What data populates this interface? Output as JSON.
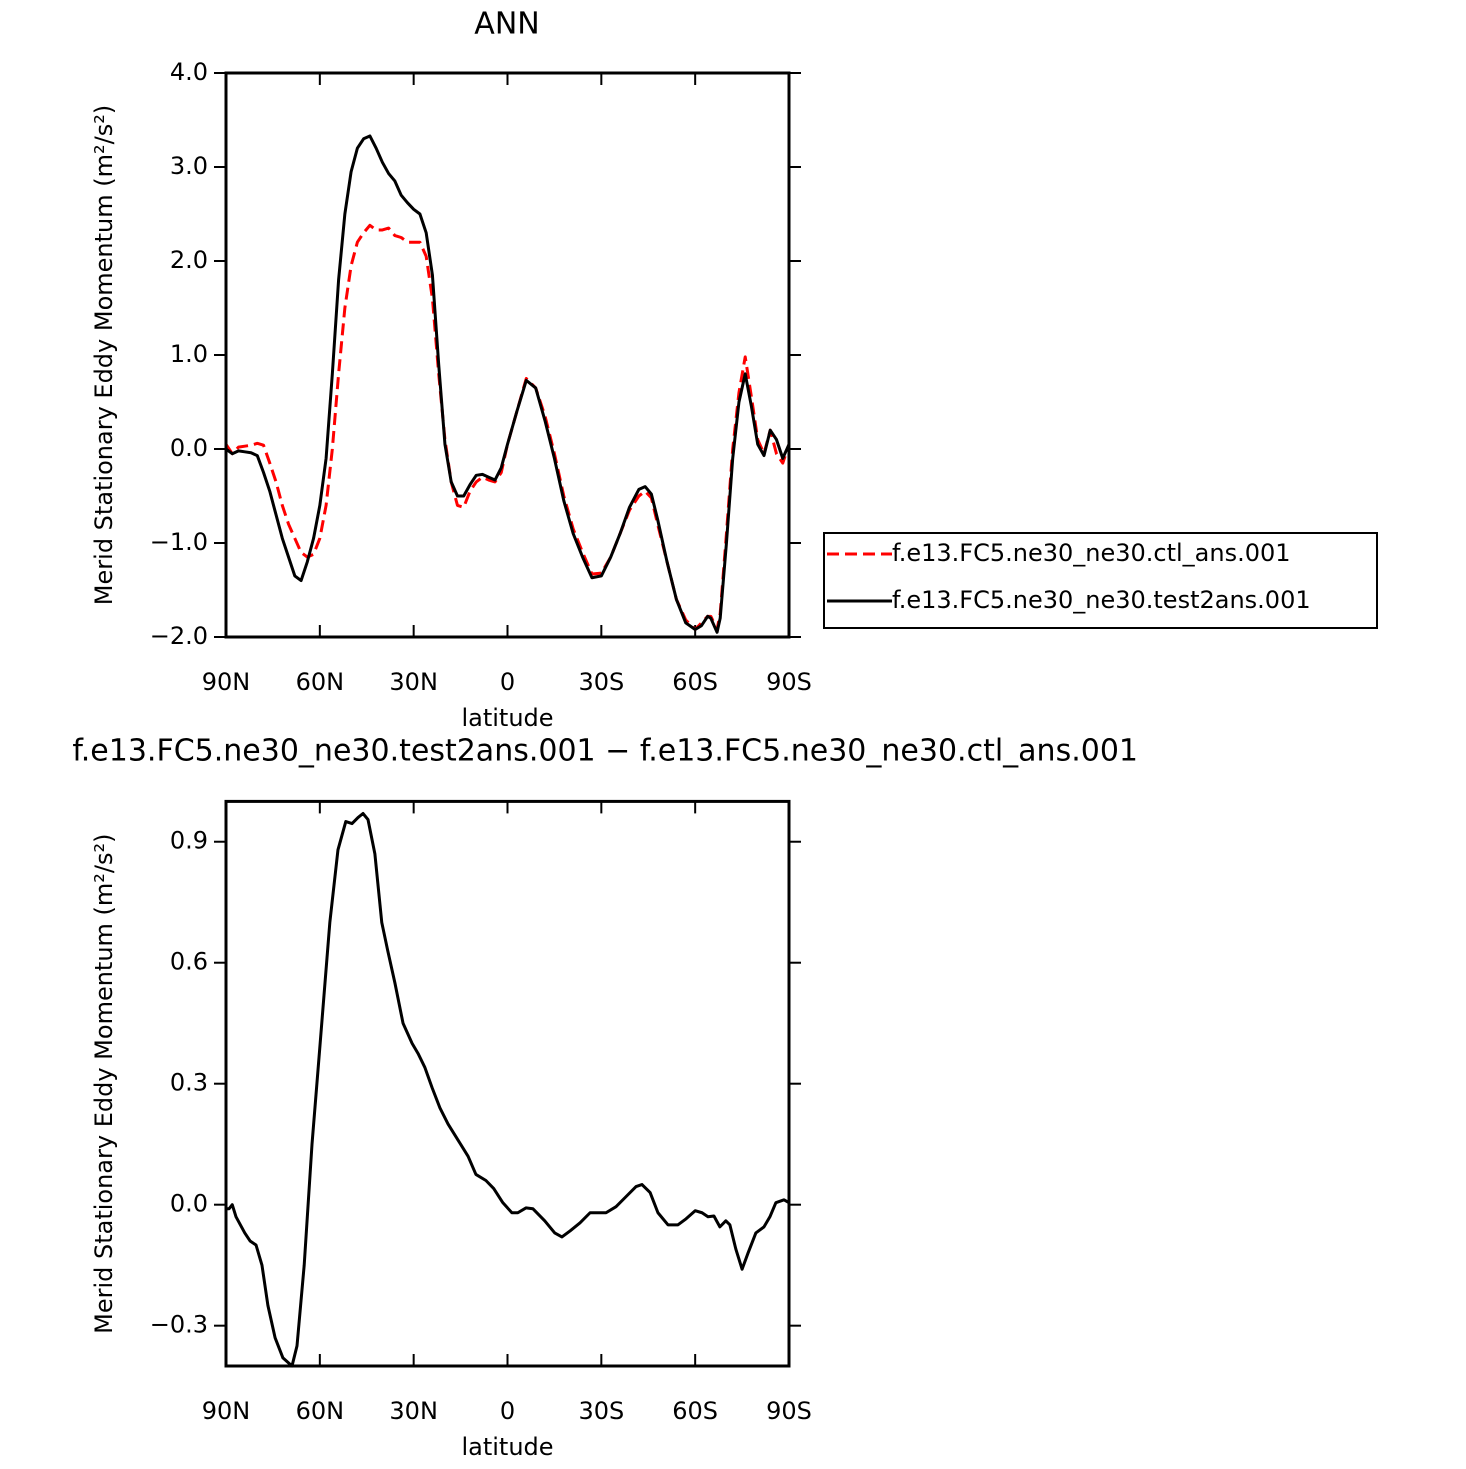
{
  "chart_data": [
    {
      "type": "line",
      "title": "ANN",
      "x_label": "latitude",
      "y_label": "Merid Stationary Eddy Momentum (m²/s²)",
      "xlim": [
        90,
        -90
      ],
      "xticks": [
        {
          "value": 90,
          "label": "90N"
        },
        {
          "value": 60,
          "label": "60N"
        },
        {
          "value": 30,
          "label": "30N"
        },
        0,
        {
          "value": -30,
          "label": "30S"
        },
        {
          "value": -60,
          "label": "60S"
        },
        {
          "value": -90,
          "label": "90S"
        }
      ],
      "ylim": [
        -2.0,
        4.0
      ],
      "yticks": [
        {
          "value": 4,
          "label": "4.0"
        },
        {
          "value": 3,
          "label": "3.0"
        },
        {
          "value": 2,
          "label": "2.0"
        },
        {
          "value": 1,
          "label": "1.0"
        },
        {
          "value": 0,
          "label": "0.0"
        },
        {
          "value": -1,
          "label": "−1.0"
        },
        {
          "value": -2,
          "label": "−2.0"
        }
      ],
      "legend": "right",
      "x": [
        90,
        88,
        86,
        84,
        82,
        80,
        78,
        76,
        74,
        72,
        70,
        68,
        66,
        64,
        62,
        60,
        58,
        56,
        54,
        52,
        50,
        48,
        46,
        44,
        42,
        40,
        38,
        36,
        34,
        32,
        30,
        28,
        26,
        24,
        22,
        20,
        18,
        16,
        14,
        12,
        10,
        8,
        6,
        4,
        2,
        0,
        -3,
        -6,
        -9,
        -12,
        -15,
        -18,
        -21,
        -24,
        -27,
        -30,
        -33,
        -36,
        -39,
        -42,
        -44,
        -46,
        -48,
        -51,
        -54,
        -57,
        -60,
        -62,
        -64,
        -65,
        -67,
        -68,
        -70,
        -72,
        -74,
        -76,
        -78,
        -80,
        -82,
        -84,
        -86,
        -88,
        -90
      ],
      "series": [
        {
          "name": "f.e13.FC5.ne30_ne30.ctl_ans.001",
          "color": "#ff0000",
          "dash": true,
          "values": [
            0.05,
            -0.05,
            0.02,
            0.03,
            0.04,
            0.06,
            0.04,
            -0.15,
            -0.35,
            -0.6,
            -0.8,
            -0.95,
            -1.1,
            -1.15,
            -1.12,
            -0.95,
            -0.6,
            0.0,
            0.8,
            1.5,
            1.95,
            2.2,
            2.3,
            2.38,
            2.33,
            2.33,
            2.35,
            2.27,
            2.25,
            2.2,
            2.2,
            2.2,
            2.05,
            1.6,
            0.8,
            0.1,
            -0.35,
            -0.6,
            -0.62,
            -0.45,
            -0.35,
            -0.3,
            -0.33,
            -0.35,
            -0.25,
            0.05,
            0.4,
            0.75,
            0.65,
            0.35,
            -0.05,
            -0.5,
            -0.85,
            -1.1,
            -1.33,
            -1.32,
            -1.15,
            -0.9,
            -0.65,
            -0.5,
            -0.45,
            -0.52,
            -0.8,
            -1.2,
            -1.6,
            -1.82,
            -1.92,
            -1.85,
            -1.78,
            -1.78,
            -1.92,
            -1.75,
            -0.9,
            0.0,
            0.6,
            0.98,
            0.55,
            0.1,
            -0.05,
            0.2,
            -0.05,
            -0.15,
            0.05
          ]
        },
        {
          "name": "f.e13.FC5.ne30_ne30.test2ans.001",
          "color": "#000000",
          "dash": false,
          "values": [
            0.0,
            -0.05,
            -0.02,
            -0.03,
            -0.04,
            -0.07,
            -0.25,
            -0.45,
            -0.7,
            -0.95,
            -1.15,
            -1.35,
            -1.4,
            -1.2,
            -0.95,
            -0.6,
            -0.1,
            0.8,
            1.8,
            2.5,
            2.95,
            3.2,
            3.3,
            3.33,
            3.2,
            3.05,
            2.93,
            2.85,
            2.7,
            2.62,
            2.55,
            2.5,
            2.3,
            1.85,
            0.9,
            0.05,
            -0.35,
            -0.5,
            -0.5,
            -0.38,
            -0.28,
            -0.27,
            -0.3,
            -0.33,
            -0.2,
            0.05,
            0.4,
            0.73,
            0.65,
            0.3,
            -0.1,
            -0.55,
            -0.9,
            -1.15,
            -1.37,
            -1.35,
            -1.15,
            -0.9,
            -0.62,
            -0.43,
            -0.4,
            -0.48,
            -0.75,
            -1.2,
            -1.6,
            -1.85,
            -1.92,
            -1.88,
            -1.78,
            -1.8,
            -1.95,
            -1.8,
            -1.0,
            -0.1,
            0.5,
            0.8,
            0.45,
            0.05,
            -0.07,
            0.2,
            0.1,
            -0.1,
            0.05
          ]
        }
      ]
    },
    {
      "type": "line",
      "title": "f.e13.FC5.ne30_ne30.test2ans.001 − f.e13.FC5.ne30_ne30.ctl_ans.001",
      "x_label": "latitude",
      "y_label": "Merid Stationary Eddy Momentum (m²/s²)",
      "xlim": [
        90,
        -90
      ],
      "xticks": [
        {
          "value": 90,
          "label": "90N"
        },
        {
          "value": 60,
          "label": "60N"
        },
        {
          "value": 30,
          "label": "30N"
        },
        0,
        {
          "value": -30,
          "label": "30S"
        },
        {
          "value": -60,
          "label": "60S"
        },
        {
          "value": -90,
          "label": "90S"
        }
      ],
      "ylim": [
        -0.4,
        1.0
      ],
      "yticks": [
        {
          "value": 0.9,
          "label": "0.9"
        },
        {
          "value": 0.6,
          "label": "0.6"
        },
        {
          "value": 0.3,
          "label": "0.3"
        },
        {
          "value": 0,
          "label": "0.0"
        },
        {
          "value": -0.3,
          "label": "−0.3"
        }
      ],
      "color": "#000000",
      "x": [
        90,
        89,
        88,
        86.8,
        84,
        82.3,
        80.4,
        78.5,
        76.6,
        74.3,
        71.8,
        68.9,
        67.3,
        65,
        62.5,
        59.9,
        56.8,
        54.2,
        51.7,
        49.7,
        47.8,
        46.2,
        44.6,
        42.4,
        40.2,
        38.3,
        36,
        33.4,
        30.5,
        28.6,
        26.4,
        24.1,
        21.6,
        19,
        15.8,
        12.6,
        10.1,
        6.9,
        4.4,
        1.5,
        -1.4,
        -3.3,
        -5.9,
        -8.1,
        -11.9,
        -15.1,
        -17.4,
        -20,
        -23.2,
        -26.4,
        -28.9,
        -31.5,
        -34.7,
        -37.9,
        -41.1,
        -43,
        -45.6,
        -48.1,
        -51.3,
        -54.5,
        -57.1,
        -60,
        -62.2,
        -64.1,
        -66,
        -67.9,
        -69.8,
        -71.1,
        -73,
        -75,
        -76.9,
        -79.4,
        -82,
        -83.9,
        -85.8,
        -88.4,
        -90
      ],
      "values": [
        -0.01,
        -0.01,
        0.0,
        -0.03,
        -0.07,
        -0.09,
        -0.1,
        -0.15,
        -0.25,
        -0.33,
        -0.38,
        -0.4,
        -0.35,
        -0.15,
        0.15,
        0.4,
        0.7,
        0.88,
        0.95,
        0.945,
        0.96,
        0.97,
        0.955,
        0.87,
        0.7,
        0.63,
        0.55,
        0.45,
        0.4,
        0.375,
        0.34,
        0.29,
        0.24,
        0.2,
        0.16,
        0.12,
        0.075,
        0.06,
        0.04,
        0.005,
        -0.02,
        -0.02,
        -0.008,
        -0.01,
        -0.04,
        -0.07,
        -0.08,
        -0.065,
        -0.045,
        -0.02,
        -0.02,
        -0.02,
        -0.005,
        0.02,
        0.045,
        0.05,
        0.03,
        -0.02,
        -0.05,
        -0.05,
        -0.035,
        -0.015,
        -0.02,
        -0.03,
        -0.028,
        -0.055,
        -0.04,
        -0.05,
        -0.11,
        -0.16,
        -0.12,
        -0.07,
        -0.055,
        -0.03,
        0.005,
        0.012,
        0.005
      ]
    }
  ]
}
